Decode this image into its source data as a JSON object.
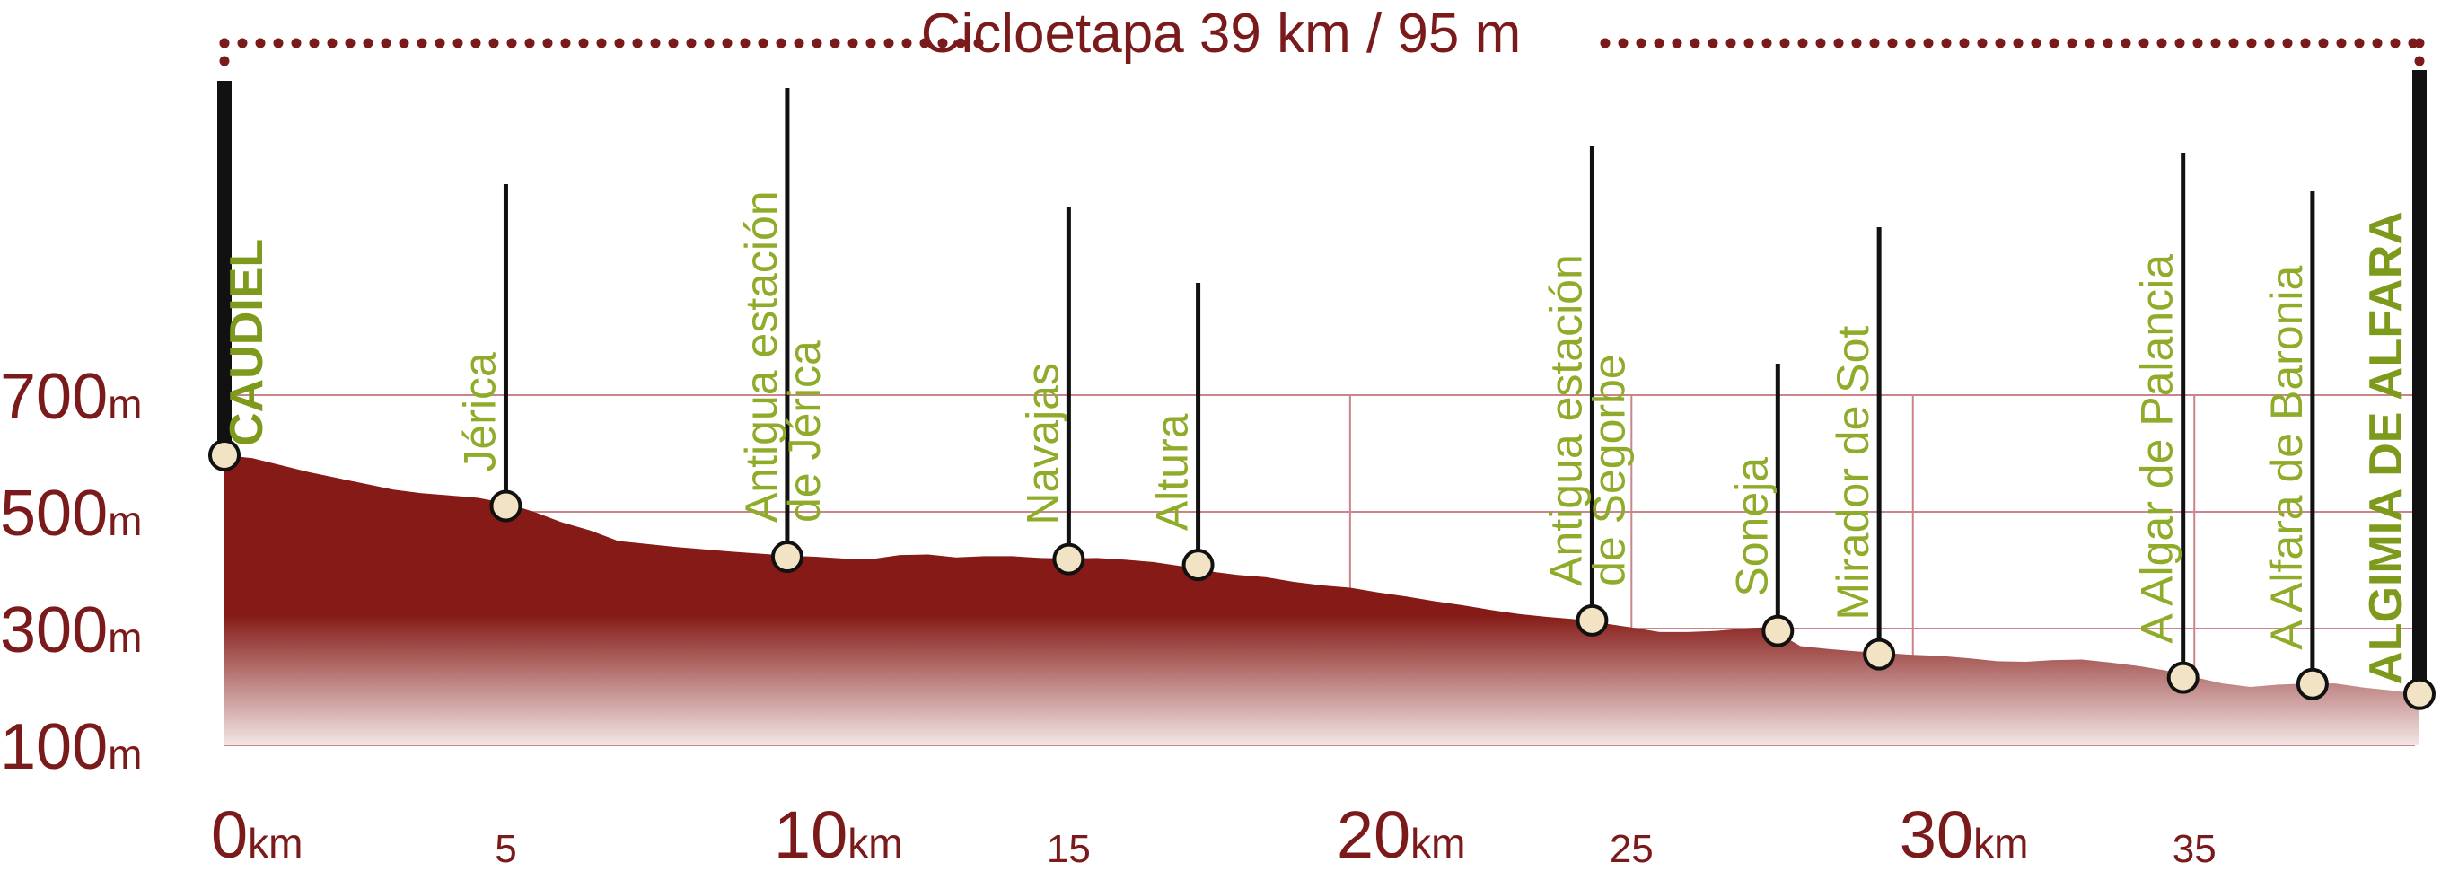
{
  "chart_data": {
    "type": "area",
    "title": "Cicloetapa 39 km / 95 m",
    "x_unit": "km",
    "y_unit": "m",
    "xlim": [
      0,
      39
    ],
    "ylim": [
      100,
      800
    ],
    "y_ticks": [
      {
        "value": 700,
        "label": "700",
        "unit": "m"
      },
      {
        "value": 500,
        "label": "500",
        "unit": "m"
      },
      {
        "value": 300,
        "label": "300",
        "unit": "m"
      },
      {
        "value": 100,
        "label": "100",
        "unit": "m"
      }
    ],
    "x_ticks": [
      {
        "value": 0,
        "label": "0",
        "unit": "km",
        "major": true
      },
      {
        "value": 5,
        "label": "5",
        "unit": "",
        "major": false
      },
      {
        "value": 10,
        "label": "10",
        "unit": "km",
        "major": true
      },
      {
        "value": 15,
        "label": "15",
        "unit": "",
        "major": false
      },
      {
        "value": 20,
        "label": "20",
        "unit": "km",
        "major": true
      },
      {
        "value": 25,
        "label": "25",
        "unit": "",
        "major": false
      },
      {
        "value": 30,
        "label": "30",
        "unit": "km",
        "major": true
      },
      {
        "value": 35,
        "label": "35",
        "unit": "",
        "major": false
      }
    ],
    "grid_x": [
      0,
      5,
      10,
      20,
      25,
      30,
      35
    ],
    "grid_y": [
      100,
      300,
      500,
      700
    ],
    "profile": {
      "x": [
        0,
        0.5,
        1,
        1.5,
        2,
        2.5,
        3,
        3.5,
        4,
        4.5,
        5,
        5.5,
        6,
        6.5,
        7,
        8,
        9,
        10,
        10.5,
        11,
        11.5,
        12,
        12.5,
        13,
        13.5,
        14,
        14.5,
        15,
        15.5,
        16,
        16.5,
        17,
        17.5,
        18,
        18.5,
        19,
        19.5,
        20,
        20.5,
        21,
        21.5,
        22,
        22.5,
        23,
        23.5,
        24,
        24.5,
        25,
        25.5,
        26,
        26.5,
        27,
        27.3,
        27.5,
        28,
        28.5,
        29,
        29.5,
        30,
        30.5,
        31,
        31.5,
        32,
        32.5,
        33,
        33.5,
        34,
        34.5,
        35,
        35.5,
        36,
        36.5,
        37,
        37.5,
        38,
        38.5,
        39
      ],
      "y": [
        597,
        592,
        580,
        568,
        558,
        548,
        538,
        532,
        528,
        524,
        515,
        500,
        482,
        468,
        450,
        440,
        432,
        425,
        423,
        420,
        419,
        426,
        427,
        422,
        424,
        424,
        421,
        420,
        421,
        418,
        414,
        407,
        398,
        392,
        388,
        380,
        374,
        370,
        362,
        355,
        347,
        340,
        332,
        325,
        320,
        316,
        309,
        302,
        294,
        294,
        296,
        300,
        302,
        298,
        270,
        265,
        261,
        258,
        255,
        253,
        249,
        244,
        243,
        246,
        247,
        242,
        236,
        228,
        217,
        206,
        200,
        204,
        206,
        206,
        199,
        194,
        188
      ]
    },
    "waypoints": [
      {
        "name": "CAUDIEL",
        "x": 0,
        "y": 597
      },
      {
        "name": "Jérica",
        "x": 5,
        "y": 510
      },
      {
        "name": "Antigua estación de Jérica",
        "x": 10,
        "y": 423
      },
      {
        "name": "Navajas",
        "x": 15,
        "y": 419
      },
      {
        "name": "Altura",
        "x": 17.3,
        "y": 409
      },
      {
        "name": "Antigua estación de Segorbe",
        "x": 24.3,
        "y": 314
      },
      {
        "name": "Soneja",
        "x": 27.6,
        "y": 296
      },
      {
        "name": "Mirador de Sot",
        "x": 29.4,
        "y": 256
      },
      {
        "name": "A Algar de Palancia",
        "x": 34.8,
        "y": 216
      },
      {
        "name": "A Alfara de Baronia",
        "x": 37.1,
        "y": 205
      },
      {
        "name": "ALGIMIA DE ALFARA",
        "x": 39,
        "y": 188
      }
    ],
    "colors": {
      "profile_top": "#851a16",
      "profile_bottom": "#f2e6e6",
      "accent": "#7a1a1a",
      "label": "#8fab2a",
      "end_label": "#7e9a1c",
      "grid": "#c9858a",
      "marker_fill": "#f1e3c3"
    }
  }
}
